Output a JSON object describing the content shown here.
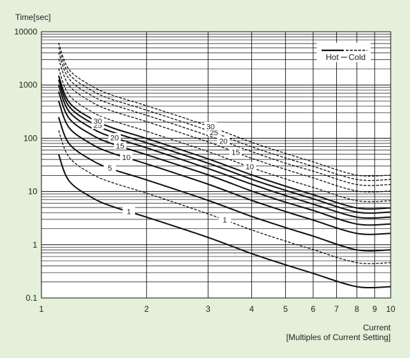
{
  "chart_data": {
    "type": "line",
    "title": "",
    "ylabel": "Time[sec]",
    "xlabel": "Current",
    "xlabel_sub": "[Multiples of Current Setting]",
    "x_scale": "log",
    "y_scale": "log",
    "xlim": [
      1,
      10
    ],
    "ylim": [
      0.1,
      10000
    ],
    "x_ticks": [
      {
        "v": 1,
        "label": "1"
      },
      {
        "v": 2,
        "label": "2"
      },
      {
        "v": 3,
        "label": "3"
      },
      {
        "v": 4,
        "label": "4"
      },
      {
        "v": 5,
        "label": "5"
      },
      {
        "v": 6,
        "label": "6"
      },
      {
        "v": 7,
        "label": "7"
      },
      {
        "v": 8,
        "label": "8"
      },
      {
        "v": 9,
        "label": "9"
      },
      {
        "v": 10,
        "label": "10"
      }
    ],
    "y_ticks": [
      {
        "v": 0.1,
        "label": "0.1"
      },
      {
        "v": 1,
        "label": "1"
      },
      {
        "v": 10,
        "label": "10"
      },
      {
        "v": 100,
        "label": "100"
      },
      {
        "v": 1000,
        "label": "1000"
      },
      {
        "v": 10000,
        "label": "10000"
      }
    ],
    "grid": true,
    "legend": {
      "position": "top-right",
      "entries": [
        {
          "label": "Hot",
          "style": "solid"
        },
        {
          "label": "Cold",
          "style": "dashed"
        }
      ]
    },
    "series": [
      {
        "name": "1",
        "style": "solid",
        "label_x": 1.78,
        "x": [
          1.12,
          1.2,
          1.4,
          1.6,
          2,
          3,
          4,
          5,
          6,
          8,
          10
        ],
        "y": [
          50,
          15.8,
          7.6,
          5.2,
          3.3,
          1.37,
          0.68,
          0.42,
          0.29,
          0.163,
          0.163
        ]
      },
      {
        "name": "5",
        "style": "solid",
        "label_x": 1.57,
        "x": [
          1.12,
          1.2,
          1.4,
          1.6,
          2,
          3,
          4,
          5,
          6,
          8,
          10
        ],
        "y": [
          250,
          79,
          38,
          26,
          16.5,
          6.8,
          3.4,
          2.1,
          1.45,
          0.8,
          0.8
        ]
      },
      {
        "name": "10",
        "style": "solid",
        "label_x": 1.75,
        "x": [
          1.12,
          1.2,
          1.4,
          1.6,
          2,
          3,
          4,
          5,
          6,
          8,
          10
        ],
        "y": [
          500,
          158,
          76,
          52,
          33,
          13.7,
          6.8,
          4.2,
          2.9,
          1.63,
          1.63
        ]
      },
      {
        "name": "15",
        "style": "solid",
        "label_x": 1.68,
        "x": [
          1.12,
          1.2,
          1.4,
          1.6,
          2,
          3,
          4,
          5,
          6,
          8,
          10
        ],
        "y": [
          750,
          237,
          114,
          78,
          49,
          20.5,
          10.2,
          6.3,
          4.4,
          2.45,
          2.45
        ]
      },
      {
        "name": "20",
        "style": "solid",
        "label_x": 1.62,
        "x": [
          1.12,
          1.2,
          1.4,
          1.6,
          2,
          3,
          4,
          5,
          6,
          8,
          10
        ],
        "y": [
          1000,
          316,
          152,
          104,
          66,
          27,
          13.7,
          8.4,
          5.8,
          3.3,
          3.3
        ]
      },
      {
        "name": "25",
        "style": "solid",
        "label_x": 1.45,
        "x": [
          1.12,
          1.2,
          1.4,
          1.6,
          2,
          3,
          4,
          5,
          6,
          8,
          10
        ],
        "y": [
          1250,
          395,
          190,
          130,
          82,
          34,
          17,
          10.5,
          7.3,
          4.1,
          4.1
        ]
      },
      {
        "name": "30",
        "style": "solid",
        "label_x": 1.45,
        "x": [
          1.12,
          1.2,
          1.4,
          1.6,
          2,
          3,
          4,
          5,
          6,
          8,
          10
        ],
        "y": [
          1500,
          474,
          228,
          156,
          99,
          41,
          20.5,
          12.6,
          8.7,
          4.9,
          4.9
        ]
      },
      {
        "name": "1",
        "style": "dashed",
        "label_x": 3.35,
        "x": [
          1.12,
          1.2,
          1.4,
          1.6,
          2,
          3,
          4,
          5,
          6,
          8,
          10
        ],
        "y": [
          140,
          44,
          21,
          14.6,
          9.3,
          3.8,
          1.9,
          1.17,
          0.81,
          0.46,
          0.46
        ]
      },
      {
        "name": "10",
        "style": "dashed",
        "label_x": 3.95,
        "x": [
          1.12,
          1.2,
          1.4,
          1.6,
          2,
          3,
          4,
          5,
          6,
          8,
          10
        ],
        "y": [
          2050,
          646,
          310,
          213,
          135,
          56,
          28,
          17.2,
          11.9,
          6.7,
          6.7
        ]
      },
      {
        "name": "15",
        "style": "dashed",
        "label_x": 3.6,
        "x": [
          1.12,
          1.2,
          1.4,
          1.6,
          2,
          3,
          4,
          5,
          6,
          8,
          10
        ],
        "y": [
          3100,
          980,
          470,
          322,
          205,
          85,
          42,
          26,
          18,
          10.2,
          10.2
        ]
      },
      {
        "name": "20",
        "style": "dashed",
        "label_x": 3.32,
        "x": [
          1.12,
          1.2,
          1.4,
          1.6,
          2,
          3,
          4,
          5,
          6,
          8,
          10
        ],
        "y": [
          4100,
          1300,
          620,
          426,
          270,
          112,
          56,
          34,
          24,
          13.5,
          13.5
        ]
      },
      {
        "name": "25",
        "style": "dashed",
        "label_x": 3.12,
        "x": [
          1.12,
          1.2,
          1.4,
          1.6,
          2,
          3,
          4,
          5,
          6,
          8,
          10
        ],
        "y": [
          5100,
          1610,
          775,
          530,
          337,
          140,
          69,
          42.6,
          29.6,
          16.8,
          16.8
        ]
      },
      {
        "name": "30",
        "style": "dashed",
        "label_x": 3.05,
        "x": [
          1.12,
          1.2,
          1.4,
          1.6,
          2,
          3,
          4,
          5,
          6,
          8,
          10
        ],
        "y": [
          6200,
          1950,
          940,
          640,
          408,
          170,
          84,
          52,
          36,
          20.3,
          20.3
        ]
      }
    ]
  }
}
